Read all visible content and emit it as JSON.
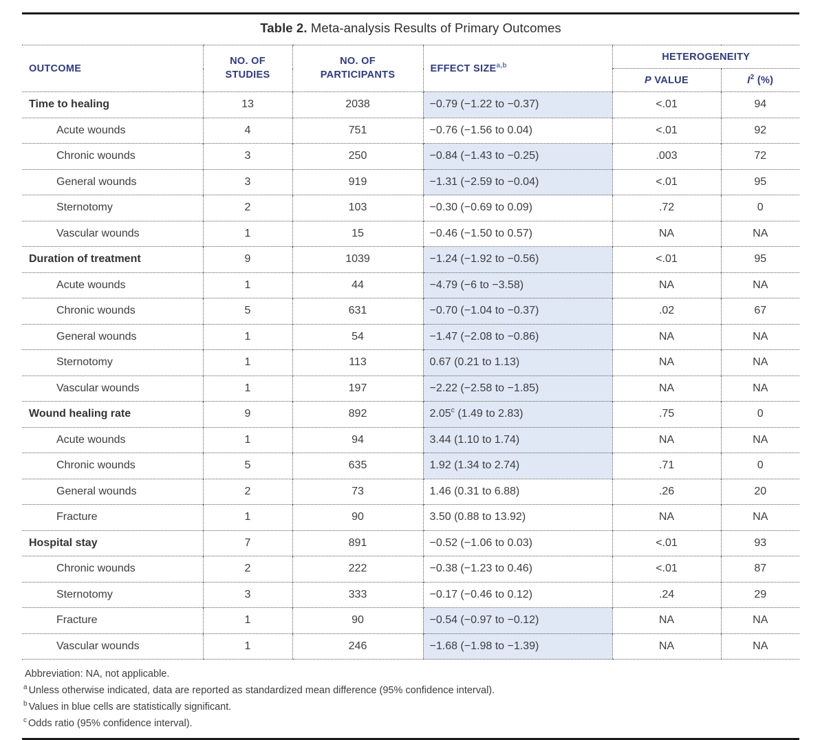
{
  "title": {
    "label": "Table 2.",
    "text": " Meta-analysis Results of Primary Outcomes"
  },
  "columns": {
    "outcome": "OUTCOME",
    "studies": "NO. OF STUDIES",
    "participants": "NO. OF PARTICIPANTS",
    "effect": "EFFECT SIZE",
    "effect_sup": "a,b",
    "heterogeneity": "HETEROGENEITY",
    "p_italic": "P",
    "p_rest": " VALUE",
    "i2_symbol": "I",
    "i2_sup": "2",
    "i2_unit": "(%)"
  },
  "colors": {
    "header_text": "#2b3a8e",
    "highlight_bg": "#e0e7f5",
    "body_text": "#3d3d3d"
  },
  "rows": [
    {
      "label": "Time to healing",
      "bold": true,
      "indent": false,
      "studies": "13",
      "participants": "2038",
      "effect": "−0.79 (−1.22 to −0.37)",
      "effect_sup": "",
      "effect_post": "",
      "highlight": true,
      "p": "<.01",
      "i2": "94"
    },
    {
      "label": "Acute wounds",
      "bold": false,
      "indent": true,
      "studies": "4",
      "participants": "751",
      "effect": "−0.76 (−1.56 to 0.04)",
      "effect_sup": "",
      "effect_post": "",
      "highlight": false,
      "p": "<.01",
      "i2": "92"
    },
    {
      "label": "Chronic wounds",
      "bold": false,
      "indent": true,
      "studies": "3",
      "participants": "250",
      "effect": "−0.84 (−1.43 to −0.25)",
      "effect_sup": "",
      "effect_post": "",
      "highlight": true,
      "p": ".003",
      "i2": "72"
    },
    {
      "label": "General wounds",
      "bold": false,
      "indent": true,
      "studies": "3",
      "participants": "919",
      "effect": "−1.31 (−2.59 to −0.04)",
      "effect_sup": "",
      "effect_post": "",
      "highlight": true,
      "p": "<.01",
      "i2": "95"
    },
    {
      "label": "Sternotomy",
      "bold": false,
      "indent": true,
      "studies": "2",
      "participants": "103",
      "effect": "−0.30 (−0.69 to 0.09)",
      "effect_sup": "",
      "effect_post": "",
      "highlight": false,
      "p": ".72",
      "i2": "0"
    },
    {
      "label": "Vascular wounds",
      "bold": false,
      "indent": true,
      "studies": "1",
      "participants": "15",
      "effect": "−0.46 (−1.50 to 0.57)",
      "effect_sup": "",
      "effect_post": "",
      "highlight": false,
      "p": "NA",
      "i2": "NA"
    },
    {
      "label": "Duration of treatment",
      "bold": true,
      "indent": false,
      "studies": "9",
      "participants": "1039",
      "effect": "−1.24 (−1.92 to −0.56)",
      "effect_sup": "",
      "effect_post": "",
      "highlight": true,
      "p": "<.01",
      "i2": "95"
    },
    {
      "label": "Acute wounds",
      "bold": false,
      "indent": true,
      "studies": "1",
      "participants": "44",
      "effect": "−4.79 (−6 to −3.58)",
      "effect_sup": "",
      "effect_post": "",
      "highlight": true,
      "p": "NA",
      "i2": "NA"
    },
    {
      "label": "Chronic wounds",
      "bold": false,
      "indent": true,
      "studies": "5",
      "participants": "631",
      "effect": "−0.70 (−1.04 to −0.37)",
      "effect_sup": "",
      "effect_post": "",
      "highlight": true,
      "p": ".02",
      "i2": "67"
    },
    {
      "label": "General wounds",
      "bold": false,
      "indent": true,
      "studies": "1",
      "participants": "54",
      "effect": "−1.47 (−2.08 to −0.86)",
      "effect_sup": "",
      "effect_post": "",
      "highlight": true,
      "p": "NA",
      "i2": "NA"
    },
    {
      "label": "Sternotomy",
      "bold": false,
      "indent": true,
      "studies": "1",
      "participants": "113",
      "effect": "0.67 (0.21 to 1.13)",
      "effect_sup": "",
      "effect_post": "",
      "highlight": true,
      "p": "NA",
      "i2": "NA"
    },
    {
      "label": "Vascular wounds",
      "bold": false,
      "indent": true,
      "studies": "1",
      "participants": "197",
      "effect": "−2.22 (−2.58 to −1.85)",
      "effect_sup": "",
      "effect_post": "",
      "highlight": true,
      "p": "NA",
      "i2": "NA"
    },
    {
      "label": "Wound healing rate",
      "bold": true,
      "indent": false,
      "studies": "9",
      "participants": "892",
      "effect": "2.05",
      "effect_sup": "c",
      "effect_post": " (1.49 to 2.83)",
      "highlight": true,
      "p": ".75",
      "i2": "0"
    },
    {
      "label": "Acute wounds",
      "bold": false,
      "indent": true,
      "studies": "1",
      "participants": "94",
      "effect": "3.44 (1.10 to 1.74)",
      "effect_sup": "",
      "effect_post": "",
      "highlight": true,
      "p": "NA",
      "i2": "NA"
    },
    {
      "label": "Chronic wounds",
      "bold": false,
      "indent": true,
      "studies": "5",
      "participants": "635",
      "effect": "1.92 (1.34 to 2.74)",
      "effect_sup": "",
      "effect_post": "",
      "highlight": true,
      "p": ".71",
      "i2": "0"
    },
    {
      "label": "General wounds",
      "bold": false,
      "indent": true,
      "studies": "2",
      "participants": "73",
      "effect": "1.46 (0.31 to 6.88)",
      "effect_sup": "",
      "effect_post": "",
      "highlight": false,
      "p": ".26",
      "i2": "20"
    },
    {
      "label": "Fracture",
      "bold": false,
      "indent": true,
      "studies": "1",
      "participants": "90",
      "effect": "3.50 (0.88 to 13.92)",
      "effect_sup": "",
      "effect_post": "",
      "highlight": false,
      "p": "NA",
      "i2": "NA"
    },
    {
      "label": "Hospital stay",
      "bold": true,
      "indent": false,
      "studies": "7",
      "participants": "891",
      "effect": "−0.52 (−1.06 to 0.03)",
      "effect_sup": "",
      "effect_post": "",
      "highlight": false,
      "p": "<.01",
      "i2": "93"
    },
    {
      "label": "Chronic wounds",
      "bold": false,
      "indent": true,
      "studies": "2",
      "participants": "222",
      "effect": "−0.38 (−1.23 to 0.46)",
      "effect_sup": "",
      "effect_post": "",
      "highlight": false,
      "p": "<.01",
      "i2": "87"
    },
    {
      "label": "Sternotomy",
      "bold": false,
      "indent": true,
      "studies": "3",
      "participants": "333",
      "effect": "−0.17 (−0.46 to 0.12)",
      "effect_sup": "",
      "effect_post": "",
      "highlight": false,
      "p": ".24",
      "i2": "29"
    },
    {
      "label": "Fracture",
      "bold": false,
      "indent": true,
      "studies": "1",
      "participants": "90",
      "effect": "−0.54 (−0.97 to −0.12)",
      "effect_sup": "",
      "effect_post": "",
      "highlight": true,
      "p": "NA",
      "i2": "NA"
    },
    {
      "label": "Vascular wounds",
      "bold": false,
      "indent": true,
      "studies": "1",
      "participants": "246",
      "effect": "−1.68 (−1.98 to −1.39)",
      "effect_sup": "",
      "effect_post": "",
      "highlight": true,
      "p": "NA",
      "i2": "NA"
    }
  ],
  "footnotes": [
    {
      "marker": "",
      "text": "Abbreviation: NA, not applicable."
    },
    {
      "marker": "a",
      "text": "Unless otherwise indicated, data are reported as standardized mean difference (95% confidence interval)."
    },
    {
      "marker": "b",
      "text": "Values in blue cells are statistically significant."
    },
    {
      "marker": "c",
      "text": "Odds ratio (95% confidence interval)."
    }
  ]
}
